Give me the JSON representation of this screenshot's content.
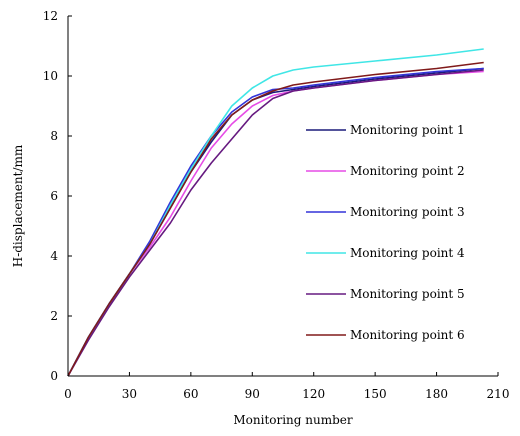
{
  "chart_data": {
    "type": "line",
    "xlabel": "Monitoring number",
    "ylabel": "H-displacement/mm",
    "xlim": [
      0,
      210
    ],
    "ylim": [
      0,
      12
    ],
    "xticks": [
      0,
      30,
      60,
      90,
      120,
      150,
      180,
      210
    ],
    "yticks": [
      0,
      2,
      4,
      6,
      8,
      10,
      12
    ],
    "grid": false,
    "legend_position": "right",
    "series": [
      {
        "name": "Monitoring point 1",
        "color": "#1a1a7a",
        "x": [
          0,
          10,
          20,
          30,
          40,
          50,
          60,
          70,
          80,
          90,
          100,
          110,
          120,
          150,
          180,
          203
        ],
        "y": [
          0,
          1.3,
          2.4,
          3.4,
          4.4,
          5.6,
          6.8,
          7.8,
          8.7,
          9.2,
          9.45,
          9.55,
          9.65,
          9.9,
          10.1,
          10.25
        ]
      },
      {
        "name": "Monitoring point 2",
        "color": "#e64ce6",
        "x": [
          0,
          10,
          20,
          30,
          40,
          50,
          60,
          70,
          80,
          90,
          100,
          110,
          120,
          150,
          180,
          203
        ],
        "y": [
          0,
          1.3,
          2.4,
          3.4,
          4.3,
          5.3,
          6.5,
          7.6,
          8.4,
          9.0,
          9.35,
          9.5,
          9.6,
          9.85,
          10.05,
          10.15
        ]
      },
      {
        "name": "Monitoring point 3",
        "color": "#3333d9",
        "x": [
          0,
          10,
          20,
          30,
          40,
          50,
          60,
          70,
          80,
          90,
          100,
          110,
          120,
          150,
          180,
          203
        ],
        "y": [
          0,
          1.3,
          2.4,
          3.4,
          4.5,
          5.8,
          7.0,
          8.0,
          8.8,
          9.3,
          9.55,
          9.6,
          9.7,
          9.95,
          10.15,
          10.25
        ]
      },
      {
        "name": "Monitoring point 4",
        "color": "#40e6e6",
        "x": [
          0,
          10,
          20,
          30,
          40,
          50,
          60,
          70,
          80,
          90,
          100,
          110,
          120,
          150,
          180,
          203
        ],
        "y": [
          0,
          1.3,
          2.4,
          3.4,
          4.4,
          5.7,
          6.9,
          8.0,
          9.0,
          9.6,
          10.0,
          10.2,
          10.3,
          10.5,
          10.7,
          10.9
        ]
      },
      {
        "name": "Monitoring point 5",
        "color": "#661a80",
        "x": [
          0,
          10,
          20,
          30,
          40,
          50,
          60,
          70,
          80,
          90,
          100,
          110,
          120,
          150,
          180,
          203
        ],
        "y": [
          0,
          1.2,
          2.3,
          3.3,
          4.2,
          5.1,
          6.2,
          7.1,
          7.9,
          8.7,
          9.25,
          9.5,
          9.6,
          9.85,
          10.05,
          10.2
        ]
      },
      {
        "name": "Monitoring point 6",
        "color": "#801a1a",
        "x": [
          0,
          10,
          20,
          30,
          40,
          50,
          60,
          70,
          80,
          90,
          100,
          110,
          120,
          150,
          180,
          203
        ],
        "y": [
          0,
          1.3,
          2.4,
          3.4,
          4.4,
          5.6,
          6.8,
          7.9,
          8.7,
          9.2,
          9.5,
          9.7,
          9.8,
          10.05,
          10.25,
          10.45
        ]
      }
    ]
  }
}
